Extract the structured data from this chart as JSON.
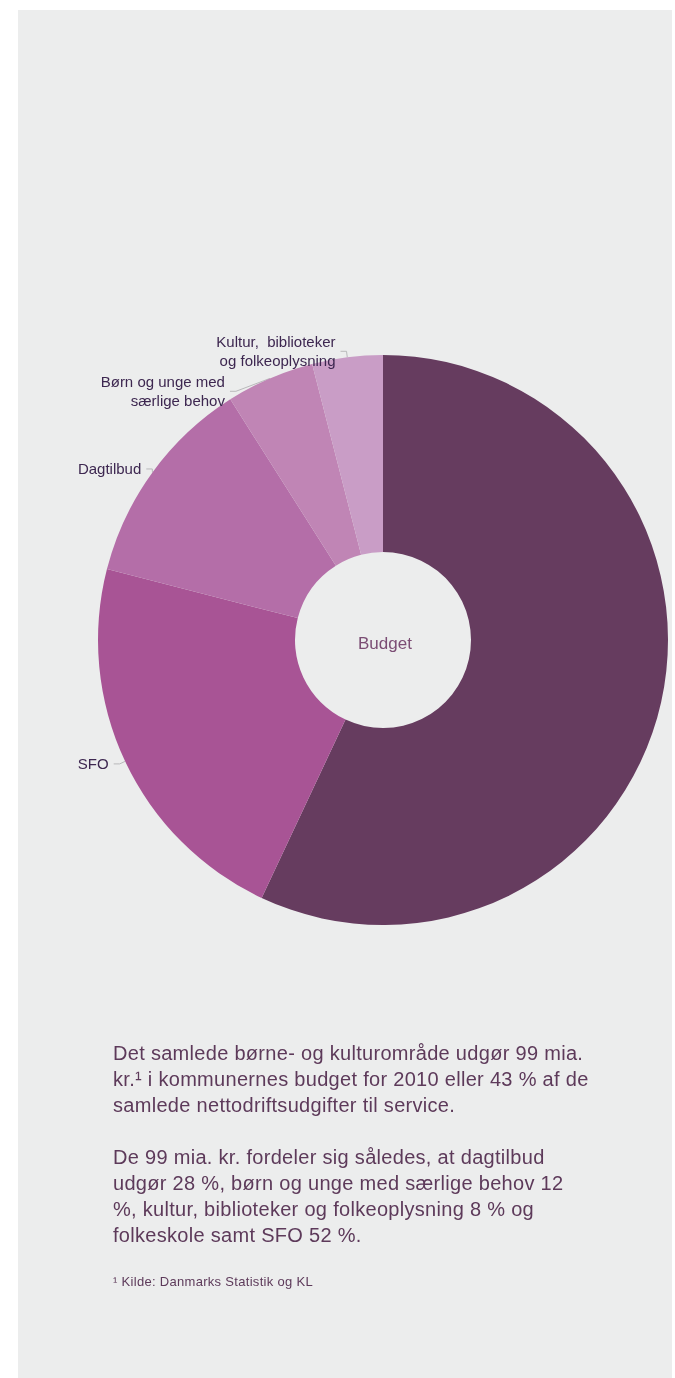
{
  "chart_data": {
    "type": "donut",
    "title": "Budget",
    "categories": [
      null,
      "SFO",
      "Dagtilbud",
      "Børn og unge med\nsærlige behov",
      "Kultur,  biblioteker\nog folkeoplysning"
    ],
    "values": [
      57,
      22,
      12,
      5,
      4
    ],
    "colors": [
      "#663c5f",
      "#a85495",
      "#b46ea8",
      "#c085b5",
      "#c99dc6"
    ],
    "legend": false,
    "annotations": [
      "Det samlede børne- og kulturområde udgør 99 mia. kr.¹ i kommunernes budget for 2010 eller 43 % af de samlede nettodriftsudgifter til service.",
      "De 99 mia. kr. fordeler sig således, at dagtilbud udgør 28 %, børn og unge med særlige behov 12 %, kultur, biblioteker og folkeoplysning 8 % og folkeskole samt SFO 52 %.",
      "¹ Kilde: Danmarks Statistik og KL"
    ]
  }
}
